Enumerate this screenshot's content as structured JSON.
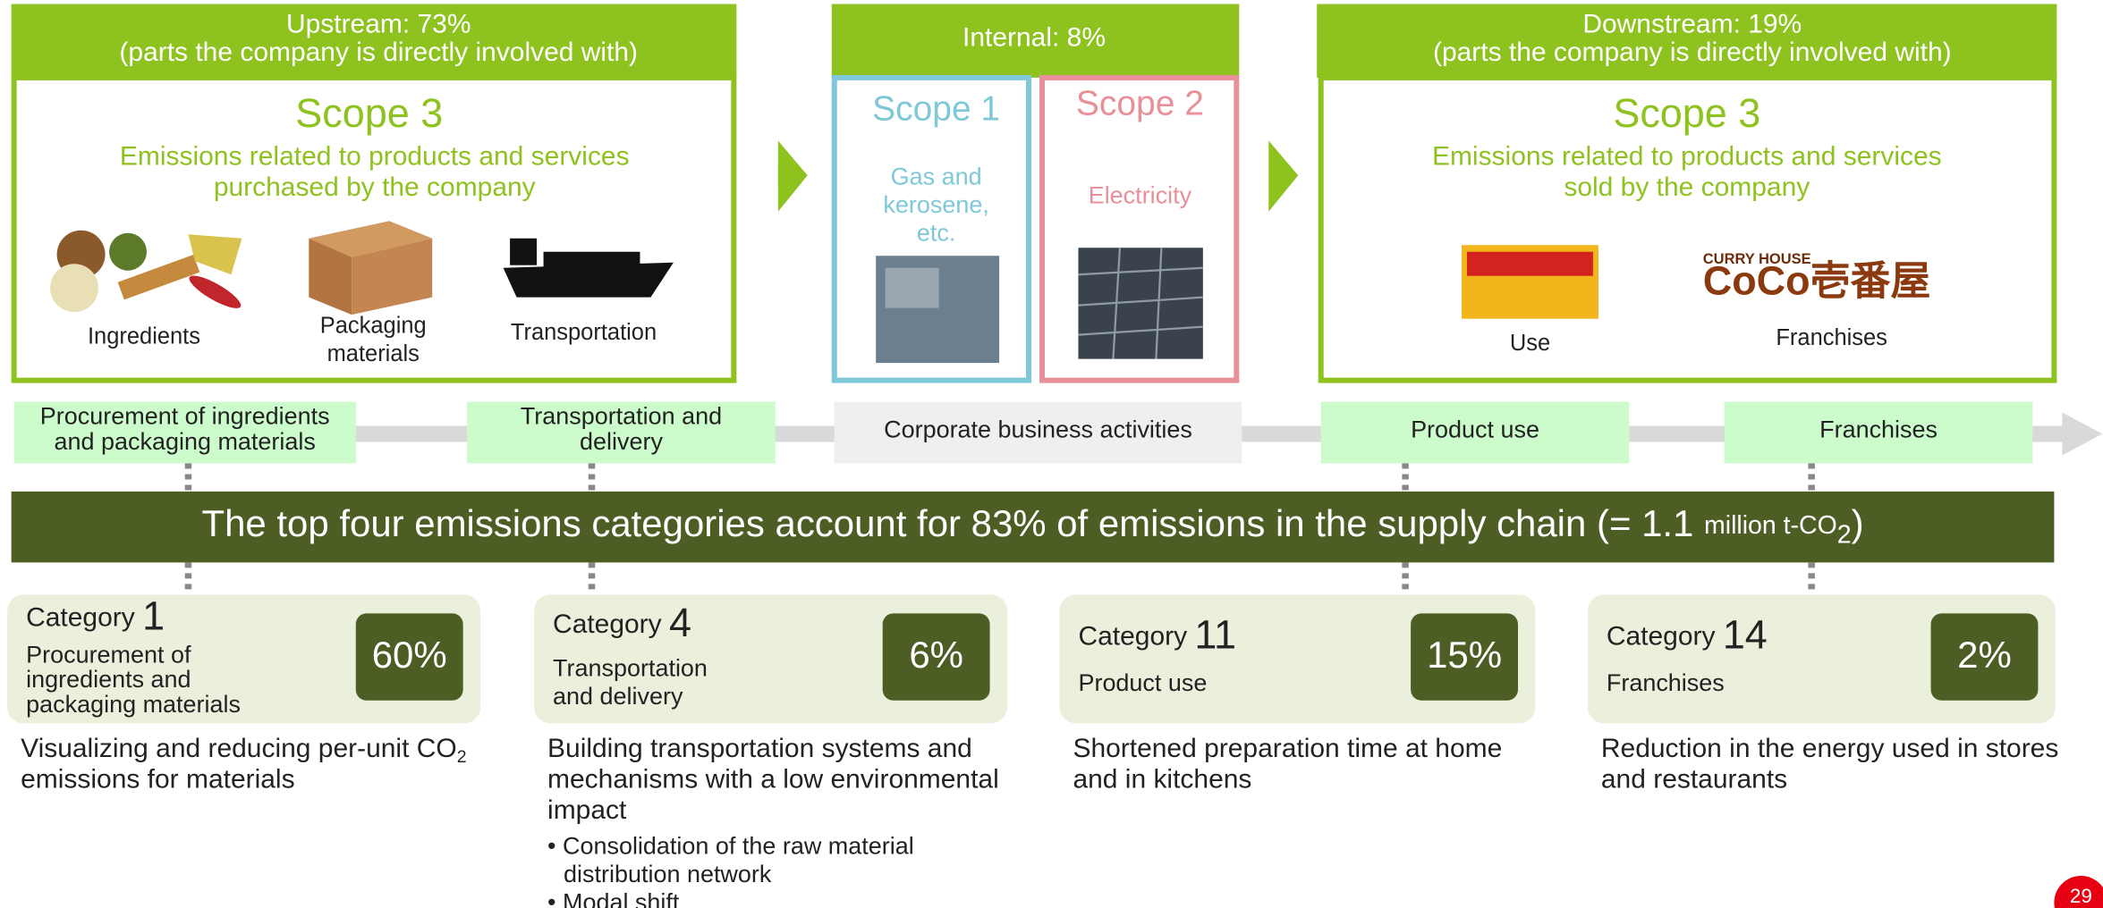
{
  "upstream": {
    "header": [
      "Upstream: 73%",
      "(parts the company is directly involved with)"
    ],
    "scope": "Scope 3",
    "description": [
      "Emissions related to products and services",
      "purchased by the company"
    ],
    "items": [
      [
        "Ingredients"
      ],
      [
        "Packaging",
        "materials"
      ],
      [
        "Transportation"
      ]
    ]
  },
  "internal": {
    "header": "Internal: 8%",
    "scope1": {
      "scope": "Scope 1",
      "description": [
        "Gas and",
        "kerosene,",
        "etc."
      ]
    },
    "scope2": {
      "scope": "Scope 2",
      "description": [
        "Electricity"
      ]
    }
  },
  "downstream": {
    "header": [
      "Downstream: 19%",
      "(parts the company is directly involved with)"
    ],
    "scope": "Scope 3",
    "description": [
      "Emissions related to products and services",
      "sold by the company"
    ],
    "logo": {
      "small": "CURRY HOUSE",
      "main": "CoCo壱番屋"
    },
    "items": [
      [
        "Use"
      ],
      [
        "Franchises"
      ]
    ]
  },
  "stages": [
    [
      "Procurement of ingredients",
      "and packaging materials"
    ],
    [
      "Transportation and",
      "delivery"
    ],
    [
      "Corporate business activities"
    ],
    [
      "Product use"
    ],
    [
      "Franchises"
    ]
  ],
  "banner": {
    "text": "The top four emissions categories account for 83% of emissions in the supply chain (= 1.1 ",
    "unit": "million t-CO",
    "unit_sub": "2",
    "close": ")"
  },
  "categories": [
    {
      "label": "Category ",
      "number": "1",
      "description": [
        "Procurement of",
        "ingredients and",
        "packaging materials"
      ],
      "share": "60%",
      "measure": [
        "Visualizing and reducing per-unit CO",
        "emissions for materials"
      ],
      "measure_sub": "2"
    },
    {
      "label": "Category ",
      "number": "4",
      "description": [
        "Transportation",
        "and delivery"
      ],
      "share": "6%",
      "measure": [
        "Building transportation systems and",
        "mechanisms with a low environmental",
        "impact"
      ],
      "bullets": [
        [
          "• Consolidation of the raw material",
          "distribution network"
        ],
        [
          "• Modal shift"
        ]
      ]
    },
    {
      "label": "Category ",
      "number": "11",
      "description": [
        "Product use"
      ],
      "share": "15%",
      "measure": [
        "Shortened preparation time at home",
        "and in kitchens"
      ]
    },
    {
      "label": "Category ",
      "number": "14",
      "description": [
        "Franchises"
      ],
      "share": "2%",
      "measure": [
        "Reduction in the energy used in stores",
        "and restaurants"
      ]
    }
  ],
  "page_number": "29"
}
